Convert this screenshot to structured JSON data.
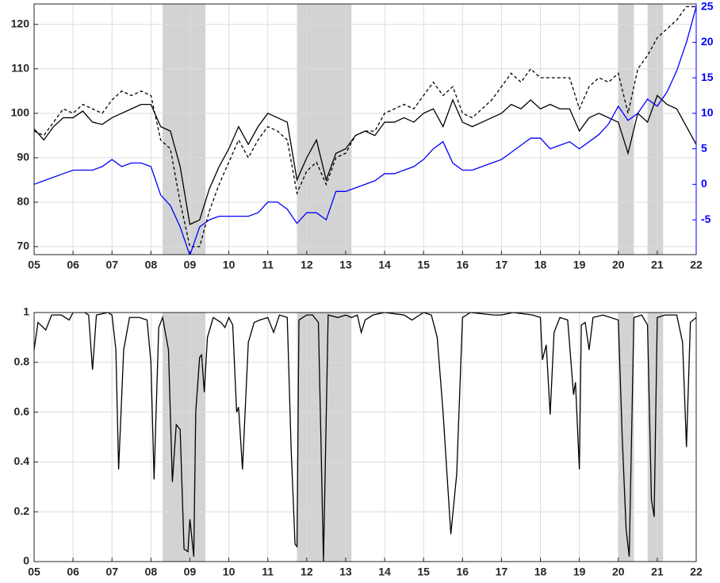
{
  "chart_data": [
    {
      "type": "line",
      "xlim": [
        2005,
        2022
      ],
      "xticks": [
        {
          "value": 2005,
          "label": "05"
        },
        {
          "value": 2006,
          "label": "06"
        },
        {
          "value": 2007,
          "label": "07"
        },
        {
          "value": 2008,
          "label": "08"
        },
        {
          "value": 2009,
          "label": "09"
        },
        {
          "value": 2010,
          "label": "10"
        },
        {
          "value": 2011,
          "label": "11"
        },
        {
          "value": 2012,
          "label": "12"
        },
        {
          "value": 2013,
          "label": "13"
        },
        {
          "value": 2014,
          "label": "14"
        },
        {
          "value": 2015,
          "label": "15"
        },
        {
          "value": 2016,
          "label": "16"
        },
        {
          "value": 2017,
          "label": "17"
        },
        {
          "value": 2018,
          "label": "18"
        },
        {
          "value": 2019,
          "label": "19"
        },
        {
          "value": 2020,
          "label": "20"
        },
        {
          "value": 2021,
          "label": "21"
        },
        {
          "value": 2022,
          "label": "22"
        }
      ],
      "ylim": [
        68.2,
        124.6
      ],
      "yticks": [
        70,
        80,
        90,
        100,
        110,
        120
      ],
      "y2lim": [
        -9.9,
        25.4
      ],
      "y2ticks": [
        -5,
        0,
        5,
        10,
        15,
        20,
        25
      ],
      "y2color": "#0000ff",
      "grid": true,
      "shaded": [
        [
          2008.3,
          2009.4
        ],
        [
          2011.75,
          2013.15
        ],
        [
          2020.0,
          2020.4
        ],
        [
          2020.75,
          2021.15
        ]
      ],
      "shade_color": "#d3d3d3",
      "x": [
        2005,
        2005.25,
        2005.5,
        2005.75,
        2006,
        2006.25,
        2006.5,
        2006.75,
        2007,
        2007.25,
        2007.5,
        2007.75,
        2008,
        2008.25,
        2008.5,
        2008.75,
        2009,
        2009.25,
        2009.5,
        2009.75,
        2010,
        2010.25,
        2010.5,
        2010.75,
        2011,
        2011.25,
        2011.5,
        2011.75,
        2012,
        2012.25,
        2012.5,
        2012.75,
        2013,
        2013.25,
        2013.5,
        2013.75,
        2014,
        2014.25,
        2014.5,
        2014.75,
        2015,
        2015.25,
        2015.5,
        2015.75,
        2016,
        2016.25,
        2016.5,
        2016.75,
        2017,
        2017.25,
        2017.5,
        2017.75,
        2018,
        2018.25,
        2018.5,
        2018.75,
        2019,
        2019.25,
        2019.5,
        2019.75,
        2020,
        2020.25,
        2020.5,
        2020.75,
        2021,
        2021.25,
        2021.5,
        2021.75,
        2022
      ],
      "series": [
        {
          "color": "#000000",
          "linestyle": "solid",
          "values": [
            96.5,
            94,
            97,
            99,
            99,
            100.5,
            98,
            97.5,
            99,
            100,
            101,
            102,
            102,
            97,
            96,
            88,
            75,
            76,
            83,
            88,
            92,
            97,
            93,
            97,
            100,
            99,
            98,
            85,
            90,
            94,
            85,
            91,
            92,
            95,
            96,
            95,
            98,
            98,
            99,
            98,
            100,
            101,
            97,
            103,
            98,
            97,
            98,
            99,
            100,
            102,
            101,
            103,
            101,
            102,
            101,
            101,
            96,
            99,
            100,
            99,
            98,
            91,
            100,
            98,
            104,
            102,
            101,
            97,
            93
          ]
        },
        {
          "color": "#000000",
          "linestyle": "dashed",
          "values": [
            96,
            95,
            98,
            101,
            100,
            102,
            101,
            100,
            103,
            105,
            104,
            105,
            104,
            94,
            92,
            80,
            70,
            70,
            78,
            84,
            89,
            94,
            90,
            94,
            97,
            96,
            94,
            82,
            87,
            89,
            84,
            90,
            91,
            95,
            96,
            96,
            100,
            101,
            102,
            101,
            104,
            107,
            104,
            106,
            100,
            99,
            101,
            103,
            106,
            109,
            107,
            110,
            108,
            108,
            108,
            108,
            101,
            106,
            108,
            107,
            109,
            100,
            110,
            113,
            117,
            119,
            121,
            124,
            124
          ]
        },
        {
          "color": "#0000ff",
          "linestyle": "solid",
          "axis": "y2",
          "values": [
            0,
            0.5,
            1,
            1.5,
            2,
            2,
            2,
            2.5,
            3.5,
            2.5,
            3,
            3,
            2.5,
            -1.5,
            -3,
            -6,
            -10,
            -6,
            -5,
            -4.5,
            -4.5,
            -4.5,
            -4.5,
            -4,
            -2.5,
            -2.5,
            -3.5,
            -5.5,
            -4,
            -4,
            -5,
            -1,
            -1,
            -0.5,
            0,
            0.5,
            1.5,
            1.5,
            2,
            2.5,
            3.5,
            5,
            6,
            3,
            2,
            2,
            2.5,
            3,
            3.5,
            4.5,
            5.5,
            6.5,
            6.5,
            5,
            5.5,
            6,
            5,
            6,
            7,
            8.5,
            11,
            9,
            10,
            12,
            11,
            13,
            16,
            20,
            25
          ]
        }
      ]
    },
    {
      "type": "line",
      "xlim": [
        2005,
        2022
      ],
      "xticks": [
        {
          "value": 2005,
          "label": "05"
        },
        {
          "value": 2006,
          "label": "06"
        },
        {
          "value": 2007,
          "label": "07"
        },
        {
          "value": 2008,
          "label": "08"
        },
        {
          "value": 2009,
          "label": "09"
        },
        {
          "value": 2010,
          "label": "10"
        },
        {
          "value": 2011,
          "label": "11"
        },
        {
          "value": 2012,
          "label": "12"
        },
        {
          "value": 2013,
          "label": "13"
        },
        {
          "value": 2014,
          "label": "14"
        },
        {
          "value": 2015,
          "label": "15"
        },
        {
          "value": 2016,
          "label": "16"
        },
        {
          "value": 2017,
          "label": "17"
        },
        {
          "value": 2018,
          "label": "18"
        },
        {
          "value": 2019,
          "label": "19"
        },
        {
          "value": 2020,
          "label": "20"
        },
        {
          "value": 2021,
          "label": "21"
        },
        {
          "value": 2022,
          "label": "22"
        }
      ],
      "ylim": [
        0,
        1
      ],
      "yticks": [
        0,
        0.2,
        0.4,
        0.6,
        0.8,
        1
      ],
      "grid": true,
      "shaded": [
        [
          2008.3,
          2009.4
        ],
        [
          2011.75,
          2013.15
        ],
        [
          2020.0,
          2020.4
        ],
        [
          2020.75,
          2021.15
        ]
      ],
      "shade_color": "#d3d3d3",
      "x": [
        2005,
        2005.1,
        2005.3,
        2005.45,
        2005.7,
        2005.9,
        2006,
        2006.3,
        2006.4,
        2006.5,
        2006.6,
        2006.9,
        2007,
        2007.1,
        2007.17,
        2007.3,
        2007.45,
        2007.7,
        2007.9,
        2008,
        2008.08,
        2008.2,
        2008.3,
        2008.45,
        2008.55,
        2008.65,
        2008.75,
        2008.85,
        2008.95,
        2009,
        2009.1,
        2009.15,
        2009.25,
        2009.3,
        2009.37,
        2009.45,
        2009.6,
        2009.8,
        2009.9,
        2010,
        2010.1,
        2010.2,
        2010.25,
        2010.35,
        2010.5,
        2010.65,
        2010.8,
        2011,
        2011.15,
        2011.3,
        2011.5,
        2011.6,
        2011.7,
        2011.75,
        2011.8,
        2012,
        2012.15,
        2012.3,
        2012.37,
        2012.43,
        2012.55,
        2012.8,
        2013,
        2013.15,
        2013.3,
        2013.4,
        2013.5,
        2013.7,
        2014,
        2014.5,
        2014.7,
        2015,
        2015.2,
        2015.35,
        2015.5,
        2015.7,
        2015.85,
        2016,
        2016.2,
        2016.8,
        2017,
        2017.3,
        2017.8,
        2018,
        2018.05,
        2018.15,
        2018.25,
        2018.35,
        2018.5,
        2018.7,
        2018.85,
        2018.9,
        2019,
        2019.05,
        2019.15,
        2019.25,
        2019.35,
        2019.6,
        2020,
        2020.1,
        2020.2,
        2020.28,
        2020.4,
        2020.6,
        2020.75,
        2020.85,
        2020.92,
        2021,
        2021.2,
        2021.5,
        2021.65,
        2021.75,
        2021.85,
        2022
      ],
      "series": [
        {
          "color": "#000000",
          "linestyle": "solid",
          "values": [
            0.85,
            0.96,
            0.93,
            0.99,
            0.99,
            0.97,
            1,
            1,
            0.99,
            0.77,
            0.99,
            1,
            0.99,
            0.85,
            0.37,
            0.85,
            0.98,
            0.98,
            0.97,
            0.8,
            0.33,
            0.94,
            0.98,
            0.85,
            0.32,
            0.55,
            0.53,
            0.05,
            0.04,
            0.17,
            0.02,
            0.6,
            0.82,
            0.83,
            0.68,
            0.9,
            0.98,
            0.96,
            0.94,
            0.98,
            0.95,
            0.6,
            0.62,
            0.37,
            0.88,
            0.96,
            0.97,
            0.98,
            0.92,
            0.99,
            0.98,
            0.45,
            0.07,
            0.06,
            0.97,
            0.99,
            0.99,
            0.96,
            0.45,
            0,
            0.99,
            0.98,
            0.99,
            0.98,
            0.99,
            0.92,
            0.97,
            0.99,
            1,
            0.99,
            0.97,
            1,
            0.99,
            0.9,
            0.6,
            0.11,
            0.35,
            0.98,
            1,
            0.99,
            0.99,
            1,
            0.99,
            0.98,
            0.81,
            0.87,
            0.59,
            0.92,
            0.98,
            0.97,
            0.67,
            0.72,
            0.37,
            0.95,
            0.96,
            0.85,
            0.98,
            0.99,
            0.97,
            0.5,
            0.13,
            0.02,
            0.98,
            0.99,
            0.95,
            0.25,
            0.18,
            0.98,
            0.99,
            0.99,
            0.88,
            0.46,
            0.96,
            0.98
          ]
        }
      ]
    }
  ]
}
